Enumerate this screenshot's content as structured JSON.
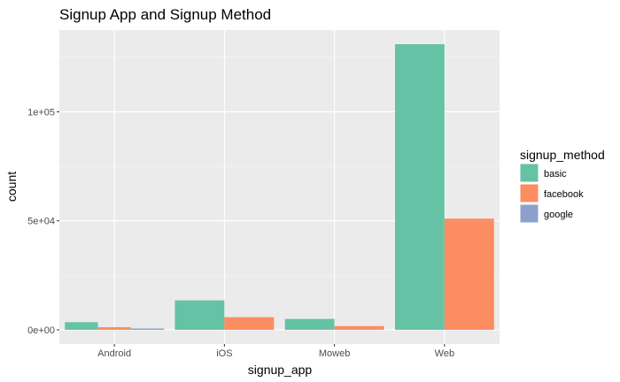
{
  "chart_data": {
    "type": "bar",
    "title": "Signup App and Signup Method",
    "xlabel": "signup_app",
    "ylabel": "count",
    "categories": [
      "Android",
      "iOS",
      "Moweb",
      "Web"
    ],
    "series": [
      {
        "name": "basic",
        "color": "#66c2a5",
        "values": [
          3500,
          13500,
          5000,
          131000
        ]
      },
      {
        "name": "facebook",
        "color": "#fc8d62",
        "values": [
          1200,
          5800,
          1700,
          51000
        ]
      },
      {
        "name": "google",
        "color": "#8da0cb",
        "values": [
          600,
          null,
          null,
          null
        ]
      }
    ],
    "yticks": [
      0,
      50000,
      100000
    ],
    "ytick_labels": [
      "0e+00",
      "5e+04",
      "1e+05"
    ],
    "ylim": [
      -6500,
      137500
    ],
    "grid": true,
    "legend_title": "signup_method",
    "legend_position": "right"
  }
}
